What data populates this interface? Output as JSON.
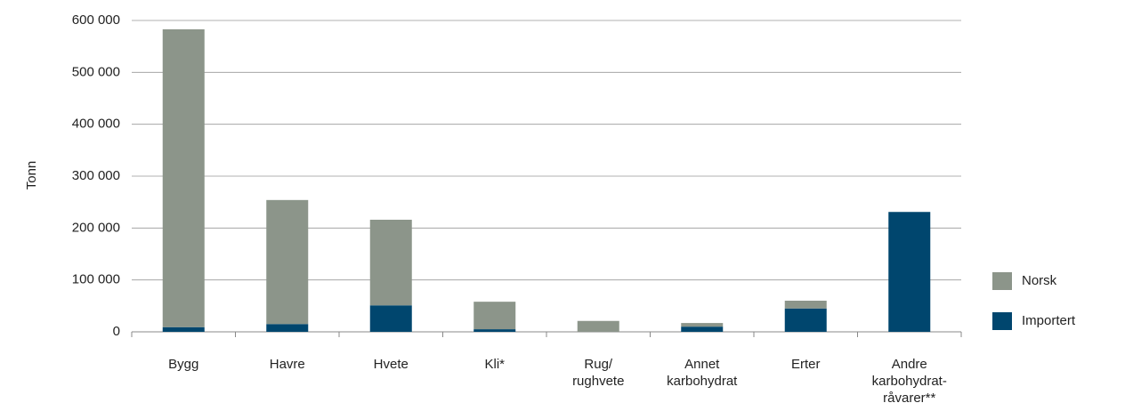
{
  "chart_data": {
    "type": "bar",
    "stacked": true,
    "y_label": "Tonn",
    "categories": [
      "Bygg",
      "Havre",
      "Hvete",
      "Kli*",
      "Rug/\nrughvete",
      "Annet\nkarbohydrat",
      "Erter",
      "Andre\nkarbohydrat-\nråvarer**"
    ],
    "series": [
      {
        "name": "Importert",
        "color": "#00466e",
        "values": [
          9000,
          15000,
          51000,
          5000,
          0,
          10000,
          45000,
          231000
        ]
      },
      {
        "name": "Norsk",
        "color": "#8c958a",
        "values": [
          574000,
          239000,
          165000,
          53000,
          21000,
          7000,
          15000,
          0
        ]
      }
    ],
    "ylim": [
      0,
      600000
    ],
    "yticks": [
      0,
      {
        "value": 100000,
        "label": "100 000"
      },
      {
        "value": 200000,
        "label": "200 000"
      },
      {
        "value": 300000,
        "label": "300 000"
      },
      {
        "value": 400000,
        "label": "400 000"
      },
      {
        "value": 500000,
        "label": "500 000"
      },
      {
        "value": 600000,
        "label": "600 000"
      }
    ],
    "grid": true
  }
}
